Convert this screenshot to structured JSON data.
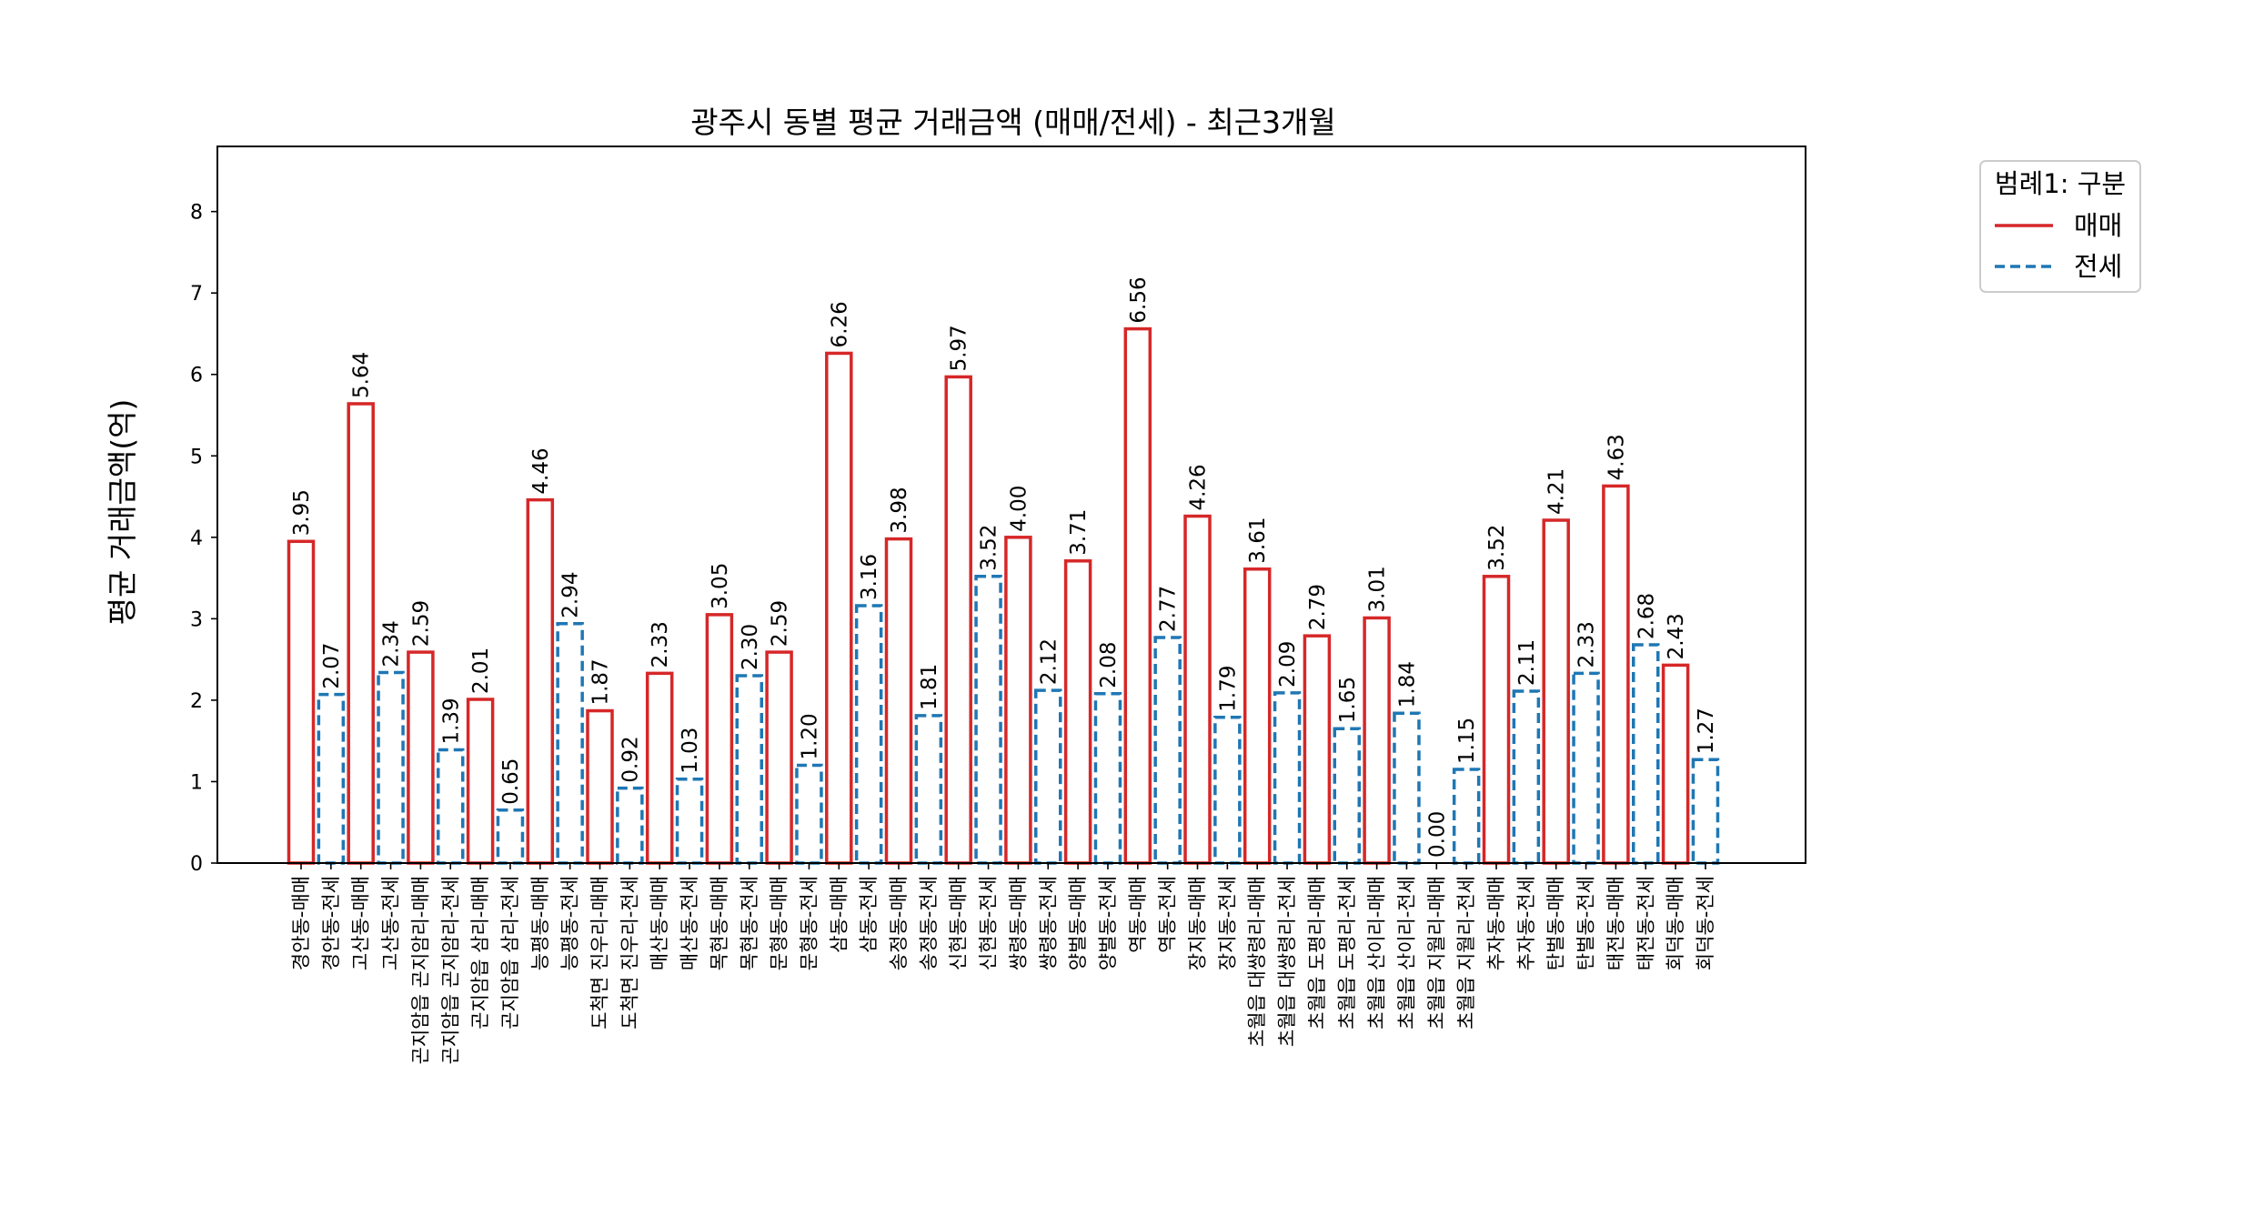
{
  "chart_data": {
    "type": "bar",
    "title": "광주시 동별 평균 거래금액 (매매/전세) - 최근3개월",
    "xlabel": "",
    "ylabel": "평균 거래금액(억)",
    "ylim": [
      0,
      8.8
    ],
    "yticks": [
      "0",
      "1",
      "2",
      "3",
      "4",
      "5",
      "6",
      "7",
      "8"
    ],
    "grid": false,
    "legend": {
      "title": "범례1: 구분",
      "placement": "outside-top-right",
      "entries": [
        {
          "label": "매매",
          "color": "#d62728",
          "style": "solid"
        },
        {
          "label": "전세",
          "color": "#1f77b4",
          "style": "dashed"
        }
      ]
    },
    "categories": [
      "경안동-매매",
      "경안동-전세",
      "고산동-매매",
      "고산동-전세",
      "곤지암읍 곤지암리-매매",
      "곤지암읍 곤지암리-전세",
      "곤지암읍 삼리-매매",
      "곤지암읍 삼리-전세",
      "능평동-매매",
      "능평동-전세",
      "도척면 진우리-매매",
      "도척면 진우리-전세",
      "매산동-매매",
      "매산동-전세",
      "목현동-매매",
      "목현동-전세",
      "문형동-매매",
      "문형동-전세",
      "삼동-매매",
      "삼동-전세",
      "송정동-매매",
      "송정동-전세",
      "신현동-매매",
      "신현동-전세",
      "쌍령동-매매",
      "쌍령동-전세",
      "양벌동-매매",
      "양벌동-전세",
      "역동-매매",
      "역동-전세",
      "장지동-매매",
      "장지동-전세",
      "초월읍 대쌍령리-매매",
      "초월읍 대쌍령리-전세",
      "초월읍 도평리-매매",
      "초월읍 도평리-전세",
      "초월읍 산이리-매매",
      "초월읍 산이리-전세",
      "초월읍 지월리-매매",
      "초월읍 지월리-전세",
      "추자동-매매",
      "추자동-전세",
      "탄벌동-매매",
      "탄벌동-전세",
      "태전동-매매",
      "태전동-전세",
      "회덕동-매매",
      "회덕동-전세"
    ],
    "values": [
      3.95,
      2.07,
      5.64,
      2.34,
      2.59,
      1.39,
      2.01,
      0.65,
      4.46,
      2.94,
      1.87,
      0.92,
      2.33,
      1.03,
      3.05,
      2.3,
      2.59,
      1.2,
      6.26,
      3.16,
      3.98,
      1.81,
      5.97,
      3.52,
      4.0,
      2.12,
      3.71,
      2.08,
      6.56,
      2.77,
      4.26,
      1.79,
      3.61,
      2.09,
      2.79,
      1.65,
      3.01,
      1.84,
      0.0,
      1.15,
      3.52,
      2.11,
      4.21,
      2.33,
      4.63,
      2.68,
      2.43,
      1.27
    ],
    "value_labels": [
      "3.95",
      "2.07",
      "5.64",
      "2.34",
      "2.59",
      "1.39",
      "2.01",
      "0.65",
      "4.46",
      "2.94",
      "1.87",
      "0.92",
      "2.33",
      "1.03",
      "3.05",
      "2.30",
      "2.59",
      "1.20",
      "6.26",
      "3.16",
      "3.98",
      "1.81",
      "5.97",
      "3.52",
      "4.00",
      "2.12",
      "3.71",
      "2.08",
      "6.56",
      "2.77",
      "4.26",
      "1.79",
      "3.61",
      "2.09",
      "2.79",
      "1.65",
      "3.01",
      "1.84",
      "0.00",
      "1.15",
      "3.52",
      "2.11",
      "4.21",
      "2.33",
      "4.63",
      "2.68",
      "2.43",
      "1.27"
    ],
    "series_type": [
      "매매",
      "전세",
      "매매",
      "전세",
      "매매",
      "전세",
      "매매",
      "전세",
      "매매",
      "전세",
      "매매",
      "전세",
      "매매",
      "전세",
      "매매",
      "전세",
      "매매",
      "전세",
      "매매",
      "전세",
      "매매",
      "전세",
      "매매",
      "전세",
      "매매",
      "전세",
      "매매",
      "전세",
      "매매",
      "전세",
      "매매",
      "전세",
      "매매",
      "전세",
      "매매",
      "전세",
      "매매",
      "전세",
      "매매",
      "전세",
      "매매",
      "전세",
      "매매",
      "전세",
      "매매",
      "전세",
      "매매",
      "전세"
    ]
  }
}
